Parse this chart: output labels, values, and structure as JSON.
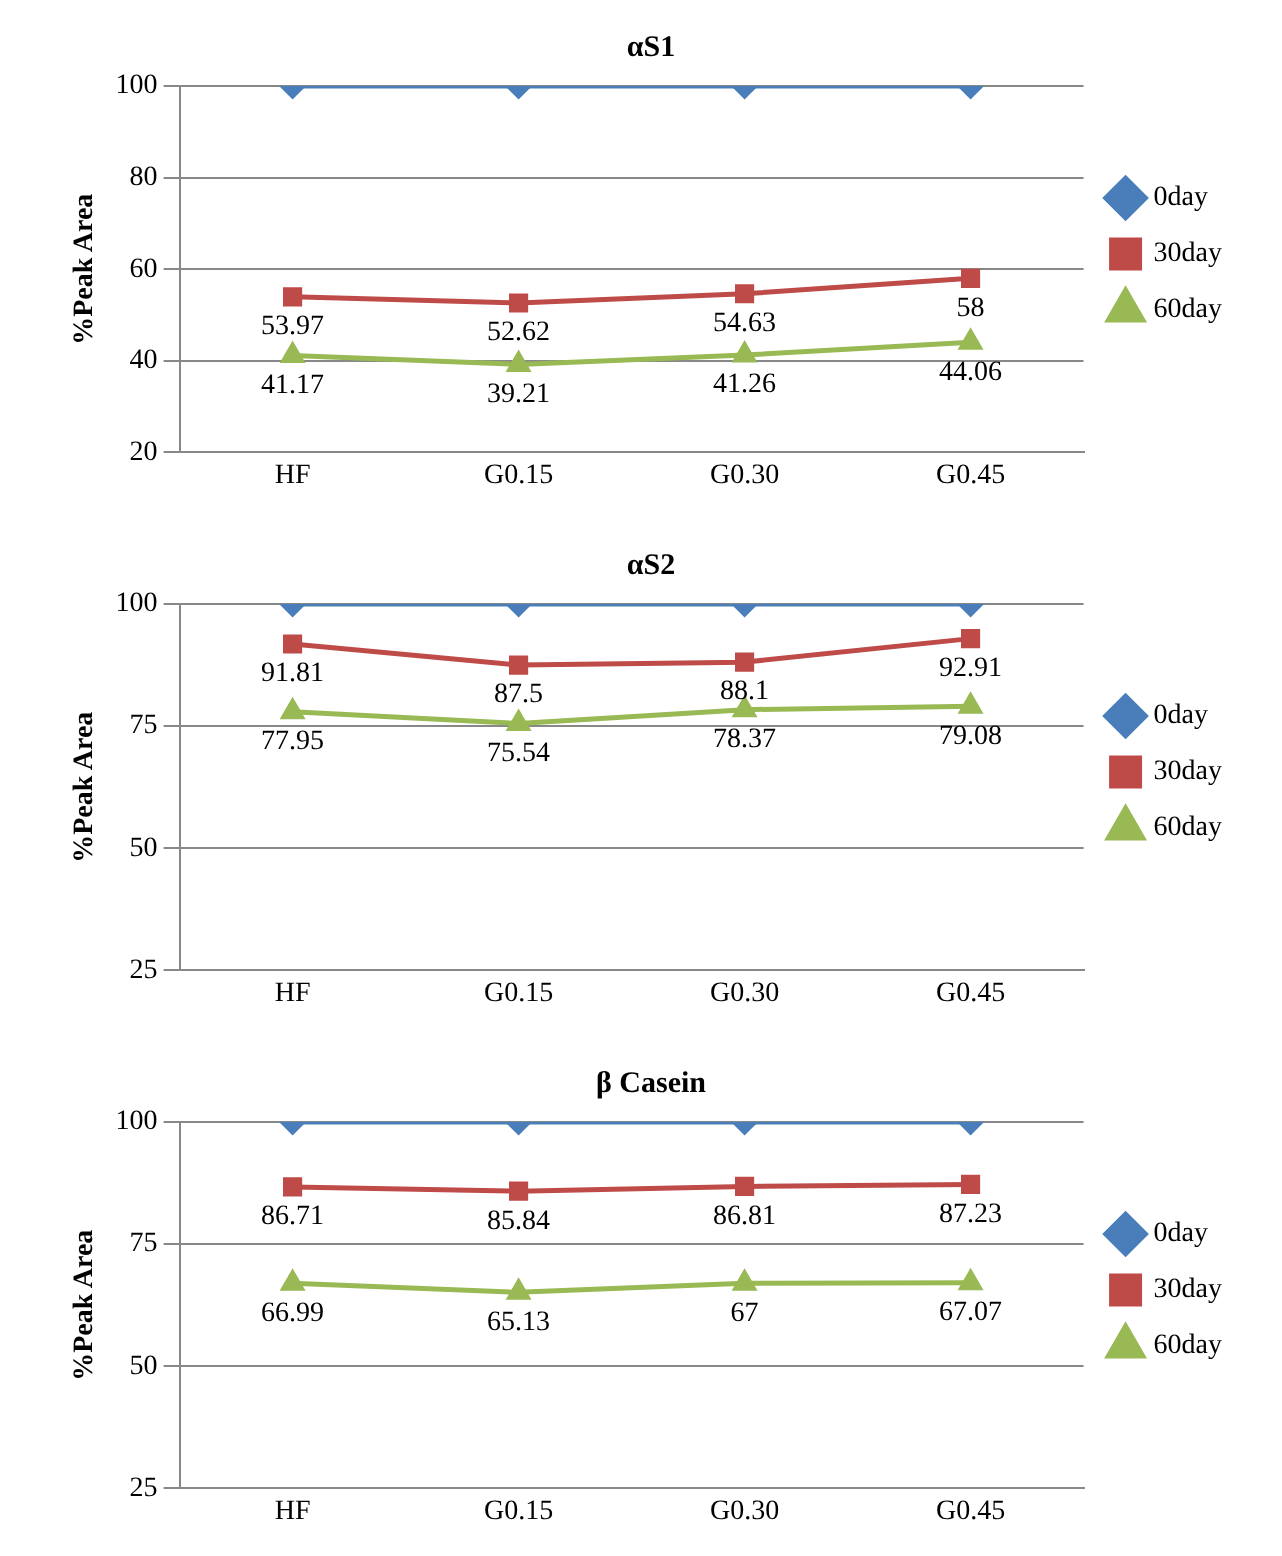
{
  "chart_data": [
    {
      "type": "line",
      "title": "αS1",
      "ylabel": "%Peak Area",
      "categories": [
        "HF",
        "G0.15",
        "G0.30",
        "G0.45"
      ],
      "ylim": [
        20,
        100
      ],
      "yticks": [
        20,
        40,
        60,
        80,
        100
      ],
      "grid": "y",
      "legend": "right",
      "series": [
        {
          "name": "0day",
          "color": "#4a7ebb",
          "marker": "diamond",
          "values": [
            100,
            100,
            100,
            100
          ]
        },
        {
          "name": "30day",
          "color": "#be4b48",
          "marker": "square",
          "values": [
            53.97,
            52.62,
            54.63,
            58
          ],
          "value_labels": [
            "53.97",
            "52.62",
            "54.63",
            "58"
          ]
        },
        {
          "name": "60day",
          "color": "#98b954",
          "marker": "triangle",
          "values": [
            41.17,
            39.21,
            41.26,
            44.06
          ],
          "value_labels": [
            "41.17",
            "39.21",
            "41.26",
            "44.06"
          ]
        }
      ]
    },
    {
      "type": "line",
      "title": "αS2",
      "ylabel": "%Peak Area",
      "categories": [
        "HF",
        "G0.15",
        "G0.30",
        "G0.45"
      ],
      "ylim": [
        25,
        100
      ],
      "yticks": [
        25,
        50,
        75,
        100
      ],
      "grid": "y",
      "legend": "right",
      "series": [
        {
          "name": "0day",
          "color": "#4a7ebb",
          "marker": "diamond",
          "values": [
            100,
            100,
            100,
            100
          ]
        },
        {
          "name": "30day",
          "color": "#be4b48",
          "marker": "square",
          "values": [
            91.81,
            87.5,
            88.1,
            92.91
          ],
          "value_labels": [
            "91.81",
            "87.5",
            "88.1",
            "92.91"
          ]
        },
        {
          "name": "60day",
          "color": "#98b954",
          "marker": "triangle",
          "values": [
            77.95,
            75.54,
            78.37,
            79.08
          ],
          "value_labels": [
            "77.95",
            "75.54",
            "78.37",
            "79.08"
          ]
        }
      ]
    },
    {
      "type": "line",
      "title": "β Casein",
      "ylabel": "%Peak Area",
      "categories": [
        "HF",
        "G0.15",
        "G0.30",
        "G0.45"
      ],
      "ylim": [
        25,
        100
      ],
      "yticks": [
        25,
        50,
        75,
        100
      ],
      "grid": "y",
      "legend": "right",
      "series": [
        {
          "name": "0day",
          "color": "#4a7ebb",
          "marker": "diamond",
          "values": [
            100,
            100,
            100,
            100
          ]
        },
        {
          "name": "30day",
          "color": "#be4b48",
          "marker": "square",
          "values": [
            86.71,
            85.84,
            86.81,
            87.23
          ],
          "value_labels": [
            "86.71",
            "85.84",
            "86.81",
            "87.23"
          ]
        },
        {
          "name": "60day",
          "color": "#98b954",
          "marker": "triangle",
          "values": [
            66.99,
            65.13,
            67,
            67.07
          ],
          "value_labels": [
            "66.99",
            "65.13",
            "67",
            "67.07"
          ]
        }
      ]
    }
  ]
}
